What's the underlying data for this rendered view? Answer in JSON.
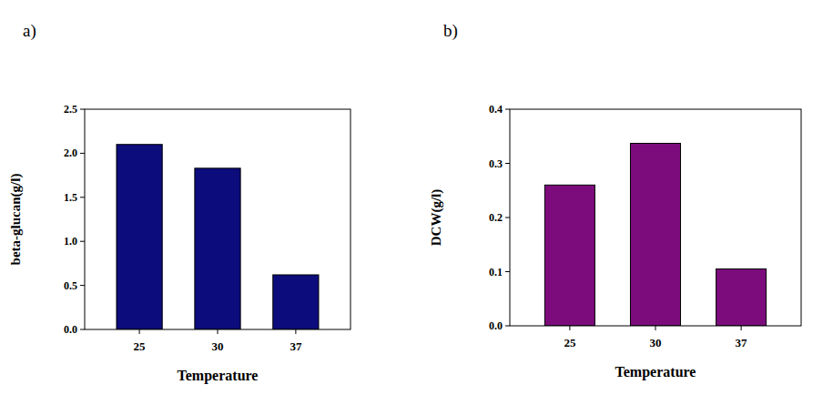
{
  "chart_data": [
    {
      "type": "bar",
      "title": "a)",
      "x_label": "Temperature",
      "y_label": "beta-glucan(g/l)",
      "categories": [
        "25",
        "30",
        "37"
      ],
      "values": [
        2.1,
        1.83,
        0.62
      ],
      "color": "#0c0c7c",
      "ylim": [
        0,
        2.5
      ],
      "yticks": [
        {
          "value": 0,
          "label": "0.0"
        },
        0.5,
        {
          "value": 1,
          "label": "1.0"
        },
        1.5,
        {
          "value": 2,
          "label": "2.0"
        },
        2.5
      ],
      "grid": false
    },
    {
      "type": "bar",
      "title": "b)",
      "x_label": "Temperature",
      "y_label": "DCW(g/l)",
      "categories": [
        "25",
        "30",
        "37"
      ],
      "values": [
        0.26,
        0.337,
        0.105
      ],
      "color": "#7c0c7c",
      "ylim": [
        0,
        0.4
      ],
      "yticks": [
        {
          "value": 0,
          "label": "0.0"
        },
        0.1,
        0.2,
        0.3,
        0.4
      ],
      "grid": false
    }
  ]
}
